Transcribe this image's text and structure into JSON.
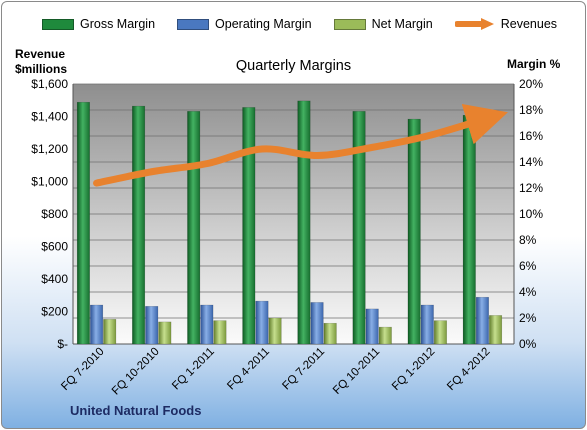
{
  "chart_data": {
    "type": "bar",
    "title": "Quarterly Margins",
    "left_axis_label_line1": "Revenue",
    "left_axis_label_line2": "$millions",
    "right_axis_label": "Margin %",
    "footer": "United Natural Foods",
    "categories": [
      "FQ 7-2010",
      "FQ 10-2010",
      "FQ 1-2011",
      "FQ 4-2011",
      "FQ 7-2011",
      "FQ 10-2011",
      "FQ 1-2012",
      "FQ 4-2012"
    ],
    "left_ylim": [
      0,
      1600
    ],
    "left_ticks": [
      "$-",
      "$200",
      "$400",
      "$600",
      "$800",
      "$1,000",
      "$1,200",
      "$1,400",
      "$1,600"
    ],
    "right_ylim": [
      0,
      20
    ],
    "right_ticks": [
      "0%",
      "2%",
      "4%",
      "6%",
      "8%",
      "10%",
      "12%",
      "14%",
      "16%",
      "18%",
      "20%"
    ],
    "series": [
      {
        "name": "Gross Margin",
        "kind": "bar",
        "axis": "right",
        "color": "#1f8a3c",
        "values": [
          18.6,
          18.3,
          17.9,
          18.2,
          18.7,
          17.9,
          17.3,
          17.6
        ]
      },
      {
        "name": "Operating Margin",
        "kind": "bar",
        "axis": "right",
        "color": "#4a78c0",
        "values": [
          3.0,
          2.9,
          3.0,
          3.3,
          3.2,
          2.7,
          3.0,
          3.6
        ]
      },
      {
        "name": "Net Margin",
        "kind": "bar",
        "axis": "right",
        "color": "#9bbb59",
        "values": [
          1.9,
          1.7,
          1.8,
          2.0,
          1.6,
          1.3,
          1.8,
          2.2
        ]
      },
      {
        "name": "Revenues",
        "kind": "line",
        "axis": "left",
        "color": "#e8822e",
        "values": [
          990,
          1060,
          1110,
          1200,
          1160,
          1210,
          1280,
          1380
        ]
      }
    ],
    "grid": true,
    "legend": "top"
  }
}
